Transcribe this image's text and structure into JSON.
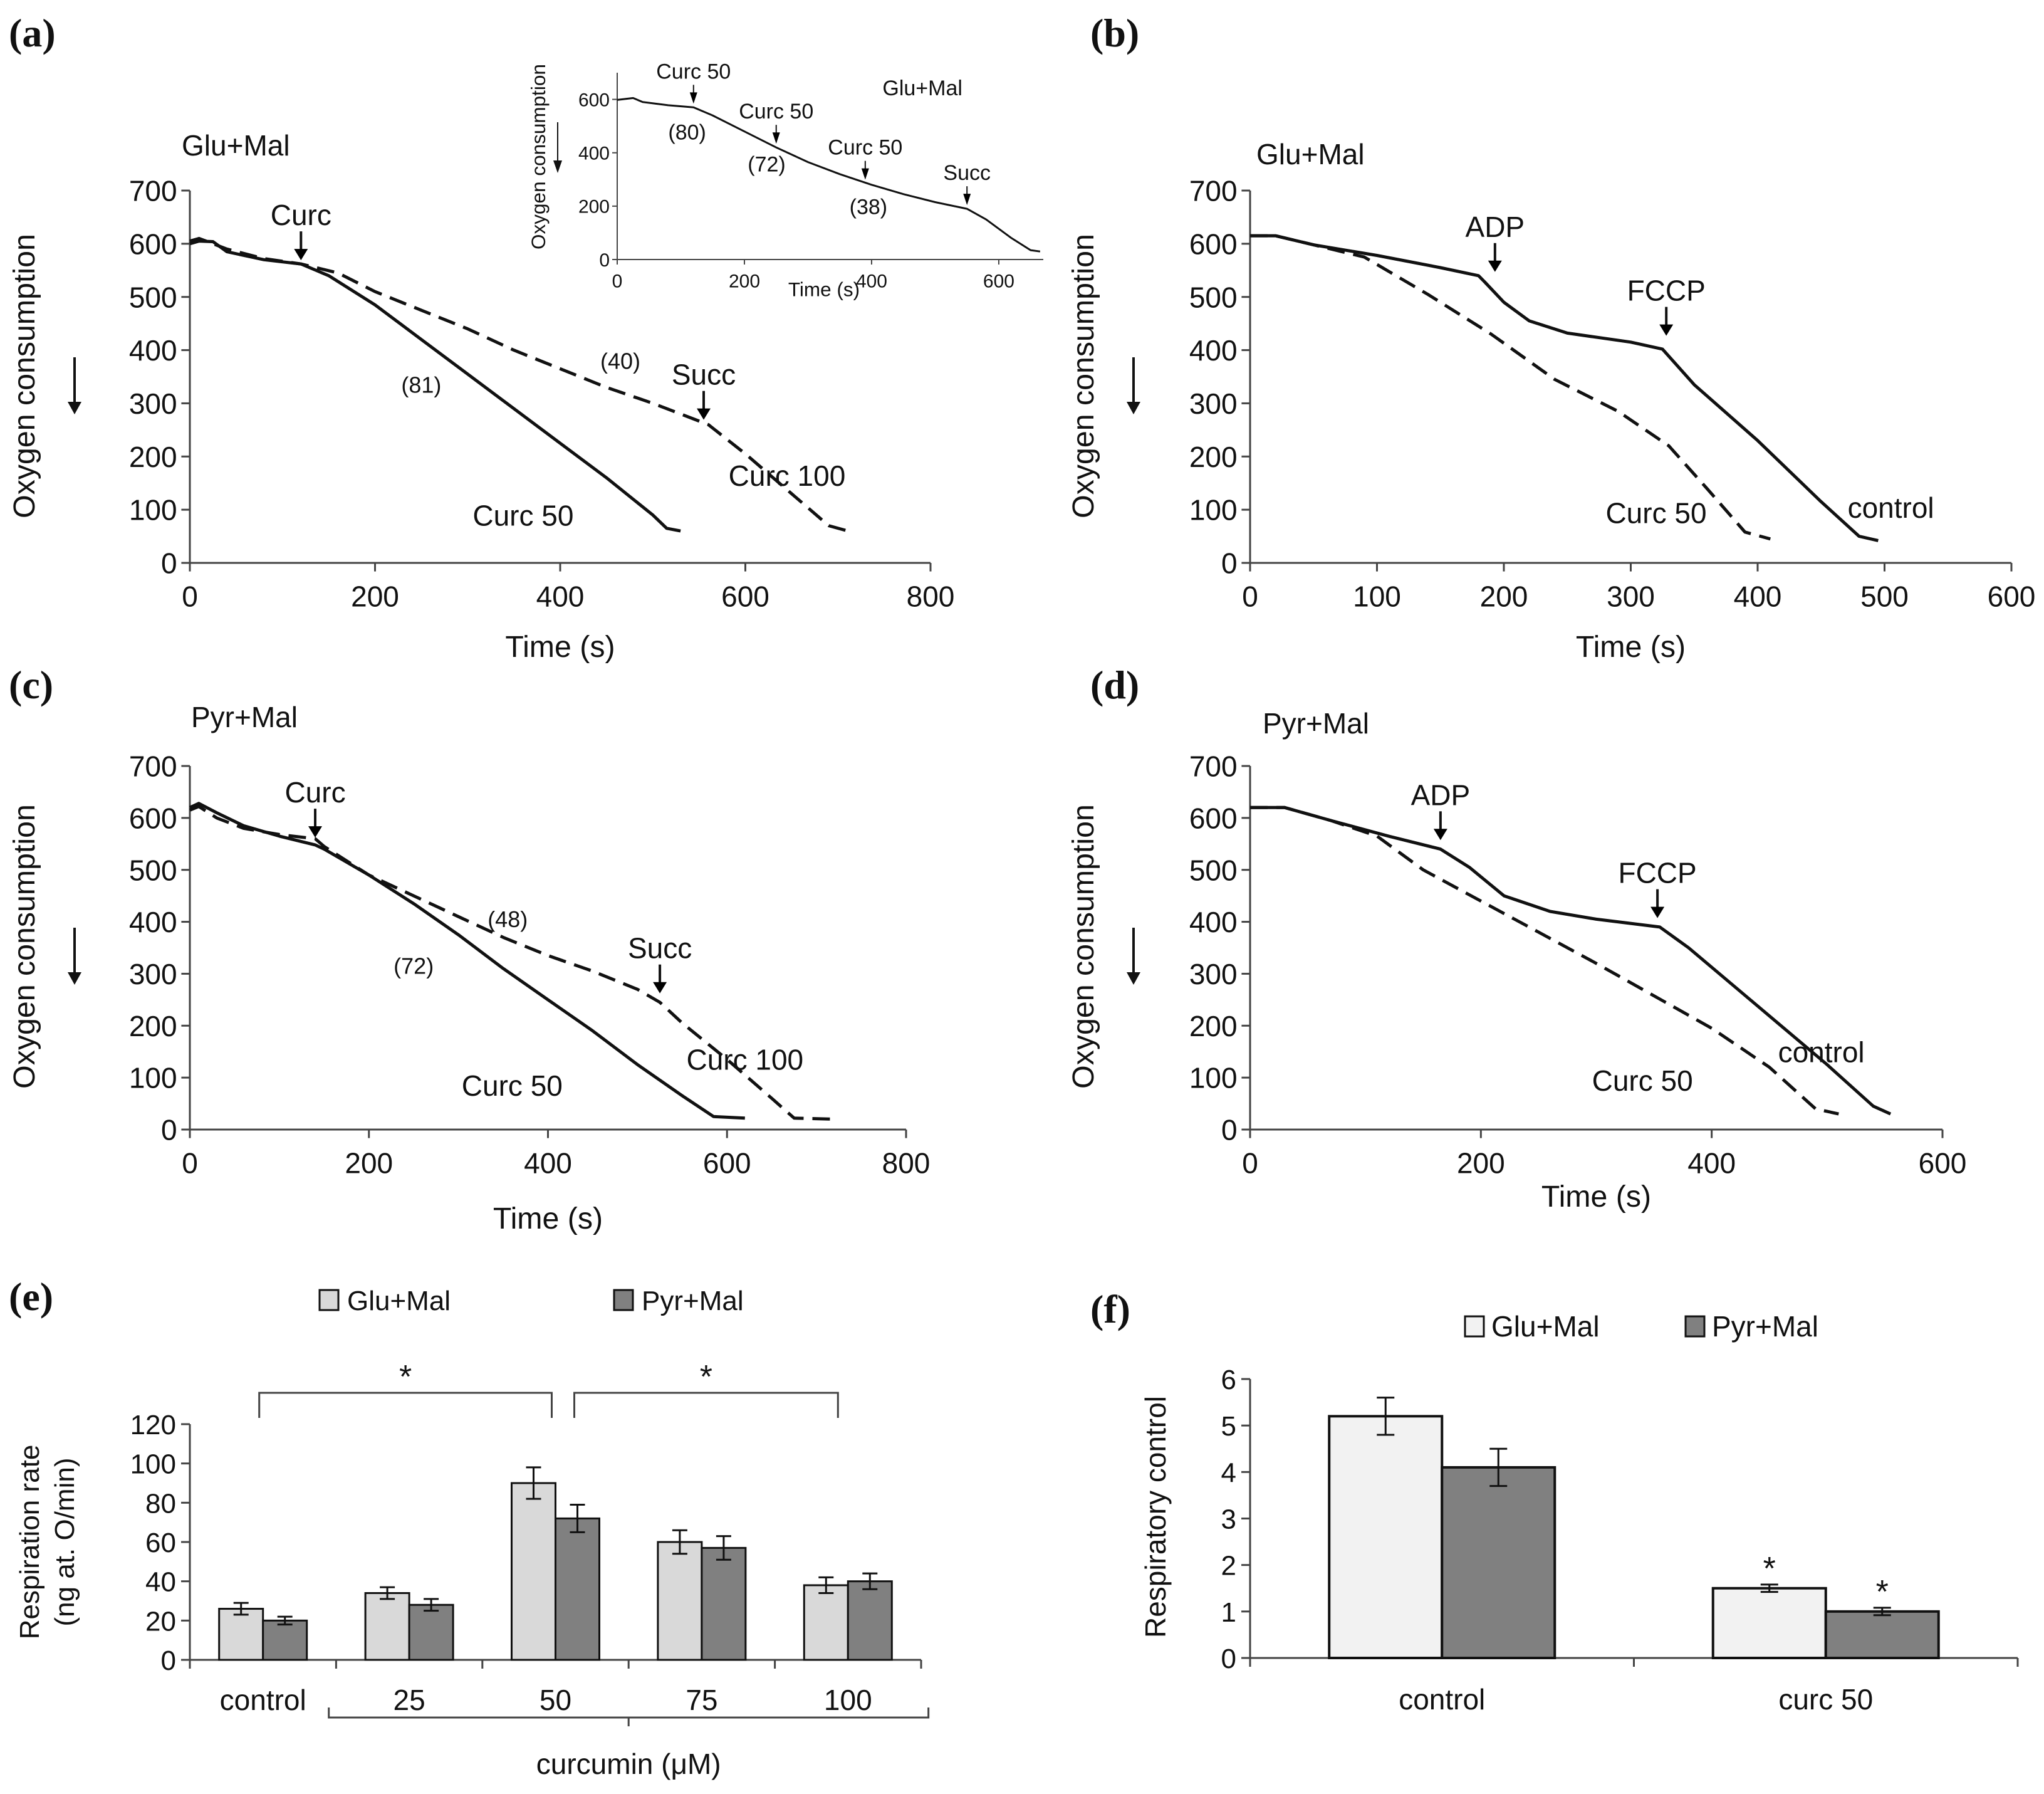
{
  "chart_data": [
    {
      "id": "a",
      "type": "line",
      "panel_label": "(a)",
      "title": "Glu+Mal",
      "xlabel": "Time (s)",
      "ylabel": "Oxygen consumption",
      "xlim": [
        0,
        800
      ],
      "ylim": [
        0,
        700
      ],
      "xticks": [
        0,
        200,
        400,
        600,
        800
      ],
      "yticks": [
        0,
        100,
        200,
        300,
        400,
        500,
        600,
        700
      ],
      "series": [
        {
          "name": "Curc 50",
          "style": "solid",
          "x": [
            0,
            10,
            25,
            40,
            80,
            120,
            150,
            200,
            250,
            300,
            350,
            400,
            450,
            500,
            515,
            530
          ],
          "y": [
            600,
            605,
            604,
            585,
            570,
            562,
            540,
            485,
            420,
            355,
            290,
            225,
            160,
            90,
            65,
            60
          ]
        },
        {
          "name": "Curc 100",
          "style": "dashed",
          "x": [
            0,
            10,
            40,
            80,
            120,
            160,
            200,
            250,
            300,
            350,
            400,
            450,
            500,
            560,
            600,
            650,
            690,
            715
          ],
          "y": [
            605,
            610,
            590,
            572,
            562,
            545,
            510,
            475,
            440,
            400,
            365,
            330,
            300,
            260,
            205,
            130,
            70,
            58
          ]
        }
      ],
      "annotations": [
        {
          "text": "Curc",
          "x": 120,
          "y": 562,
          "arrow": true
        },
        {
          "text": "Succ",
          "x": 555,
          "y": 262,
          "arrow": true
        },
        {
          "text": "(81)",
          "x": 250,
          "y": 320
        },
        {
          "text": "(40)",
          "x": 465,
          "y": 365
        },
        {
          "text": "Curc  50",
          "x": 360,
          "y": 70
        },
        {
          "text": "Curc  100",
          "x": 645,
          "y": 145
        }
      ]
    },
    {
      "id": "a_inset",
      "type": "line",
      "title": "Glu+Mal",
      "xlabel": "Time (s)",
      "ylabel": "Oxygen consumption",
      "xlim": [
        0,
        670
      ],
      "ylim": [
        0,
        700
      ],
      "xticks": [
        0,
        200,
        400,
        600
      ],
      "yticks": [
        0,
        200,
        400,
        600
      ],
      "series": [
        {
          "name": "trace",
          "style": "solid",
          "x": [
            0,
            25,
            40,
            80,
            120,
            150,
            200,
            250,
            300,
            350,
            400,
            450,
            500,
            550,
            580,
            620,
            650,
            665
          ],
          "y": [
            598,
            605,
            590,
            578,
            570,
            540,
            480,
            420,
            365,
            320,
            280,
            245,
            215,
            190,
            150,
            80,
            35,
            30
          ]
        }
      ],
      "annotations": [
        {
          "text": "Curc 50",
          "x": 120,
          "y": 570,
          "arrow": true
        },
        {
          "text": "Curc 50",
          "x": 250,
          "y": 420,
          "arrow": true
        },
        {
          "text": "Curc 50",
          "x": 390,
          "y": 285,
          "arrow": true
        },
        {
          "text": "Succ",
          "x": 550,
          "y": 190,
          "arrow": true
        },
        {
          "text": "(80)",
          "x": 110,
          "y": 450
        },
        {
          "text": "(72)",
          "x": 235,
          "y": 330
        },
        {
          "text": "(38)",
          "x": 395,
          "y": 170
        }
      ]
    },
    {
      "id": "b",
      "type": "line",
      "panel_label": "(b)",
      "title": "Glu+Mal",
      "xlabel": "Time (s)",
      "ylabel": "Oxygen consumption",
      "xlim": [
        0,
        600
      ],
      "ylim": [
        0,
        700
      ],
      "xticks": [
        0,
        100,
        200,
        300,
        400,
        500,
        600
      ],
      "yticks": [
        0,
        100,
        200,
        300,
        400,
        500,
        600,
        700
      ],
      "series": [
        {
          "name": "control",
          "style": "solid",
          "x": [
            0,
            20,
            50,
            100,
            150,
            180,
            185,
            200,
            220,
            250,
            300,
            325,
            350,
            400,
            450,
            480,
            495
          ],
          "y": [
            615,
            615,
            598,
            578,
            555,
            540,
            528,
            490,
            455,
            432,
            415,
            402,
            335,
            230,
            115,
            50,
            42
          ]
        },
        {
          "name": "Curc 50",
          "style": "dashed",
          "x": [
            0,
            20,
            50,
            90,
            140,
            190,
            240,
            290,
            330,
            360,
            390,
            410
          ],
          "y": [
            615,
            615,
            598,
            575,
            505,
            430,
            345,
            285,
            220,
            140,
            58,
            45
          ]
        }
      ],
      "annotations": [
        {
          "text": "ADP",
          "x": 193,
          "y": 540,
          "arrow": true
        },
        {
          "text": "FCCP",
          "x": 328,
          "y": 420,
          "arrow": true
        },
        {
          "text": "Curc 50",
          "x": 320,
          "y": 75
        },
        {
          "text": "control",
          "x": 505,
          "y": 85
        }
      ]
    },
    {
      "id": "c",
      "type": "line",
      "panel_label": "(c)",
      "title": "Pyr+Mal",
      "xlabel": "Time (s)",
      "ylabel": "Oxygen consumption",
      "xlim": [
        0,
        800
      ],
      "ylim": [
        0,
        700
      ],
      "xticks": [
        0,
        200,
        400,
        600,
        800
      ],
      "yticks": [
        0,
        100,
        200,
        300,
        400,
        500,
        600,
        700
      ],
      "series": [
        {
          "name": "Curc 50",
          "style": "solid",
          "x": [
            0,
            10,
            30,
            60,
            100,
            140,
            150,
            200,
            250,
            300,
            350,
            400,
            450,
            500,
            550,
            585,
            620
          ],
          "y": [
            620,
            628,
            610,
            585,
            565,
            548,
            540,
            490,
            435,
            375,
            310,
            250,
            190,
            125,
            65,
            25,
            22
          ]
        },
        {
          "name": "Curc 100",
          "style": "dashed",
          "x": [
            0,
            10,
            30,
            60,
            100,
            140,
            150,
            200,
            250,
            300,
            350,
            400,
            450,
            500,
            525,
            550,
            600,
            650,
            675,
            720
          ],
          "y": [
            615,
            622,
            600,
            580,
            568,
            560,
            545,
            490,
            450,
            410,
            370,
            335,
            305,
            270,
            245,
            205,
            135,
            60,
            22,
            20
          ]
        }
      ],
      "annotations": [
        {
          "text": "Curc",
          "x": 140,
          "y": 555,
          "arrow": true
        },
        {
          "text": "Succ",
          "x": 525,
          "y": 255,
          "arrow": true
        },
        {
          "text": "(72)",
          "x": 250,
          "y": 300
        },
        {
          "text": "(48)",
          "x": 355,
          "y": 390
        },
        {
          "text": "Curc 50",
          "x": 360,
          "y": 65
        },
        {
          "text": "Curc 100",
          "x": 620,
          "y": 115
        }
      ]
    },
    {
      "id": "d",
      "type": "line",
      "panel_label": "(d)",
      "title": "Pyr+Mal",
      "xlabel": "Time (s)",
      "ylabel": "Oxygen consumption",
      "xlim": [
        0,
        600
      ],
      "ylim": [
        0,
        700
      ],
      "xticks": [
        0,
        200,
        400,
        600
      ],
      "yticks": [
        0,
        100,
        200,
        300,
        400,
        500,
        600,
        700
      ],
      "series": [
        {
          "name": "control",
          "style": "solid",
          "x": [
            0,
            30,
            70,
            120,
            165,
            190,
            220,
            260,
            300,
            355,
            380,
            420,
            460,
            500,
            540,
            555
          ],
          "y": [
            620,
            620,
            595,
            565,
            540,
            505,
            450,
            420,
            405,
            390,
            350,
            275,
            200,
            125,
            45,
            30
          ]
        },
        {
          "name": "Curc 50",
          "style": "dashed",
          "x": [
            0,
            30,
            70,
            110,
            150,
            200,
            250,
            300,
            360,
            400,
            450,
            490,
            510
          ],
          "y": [
            620,
            620,
            595,
            565,
            500,
            440,
            380,
            320,
            245,
            195,
            120,
            40,
            30
          ]
        }
      ],
      "annotations": [
        {
          "text": "ADP",
          "x": 165,
          "y": 550,
          "arrow": true
        },
        {
          "text": "FCCP",
          "x": 353,
          "y": 400,
          "arrow": true
        },
        {
          "text": "Curc  50",
          "x": 340,
          "y": 75
        },
        {
          "text": "control",
          "x": 495,
          "y": 130
        }
      ]
    },
    {
      "id": "e",
      "type": "bar",
      "panel_label": "(e)",
      "ylabel_lines": [
        "Respiration rate",
        "(ng at. O/min)"
      ],
      "categories": [
        "control",
        "25",
        "50",
        "75",
        "100"
      ],
      "group_label": "curcumin (μM)",
      "ylim": [
        0,
        120
      ],
      "yticks": [
        0,
        20,
        40,
        60,
        80,
        100,
        120
      ],
      "series": [
        {
          "name": "Glu+Mal",
          "color": "#d9d9d9",
          "values": [
            26,
            34,
            90,
            60,
            38
          ],
          "errors": [
            3,
            3,
            8,
            6,
            4
          ]
        },
        {
          "name": "Pyr+Mal",
          "color": "#808080",
          "values": [
            20,
            28,
            72,
            57,
            40
          ],
          "errors": [
            2,
            3,
            7,
            6,
            4
          ]
        }
      ],
      "significance": [
        {
          "from": 0,
          "to": 2,
          "text": "*"
        },
        {
          "from": 2,
          "to": 4,
          "text": "*"
        }
      ]
    },
    {
      "id": "f",
      "type": "bar",
      "panel_label": "(f)",
      "ylabel": "Respiratory control",
      "categories": [
        "control",
        "curc 50"
      ],
      "ylim": [
        0,
        6
      ],
      "yticks": [
        0,
        1,
        2,
        3,
        4,
        5,
        6
      ],
      "series": [
        {
          "name": "Glu+Mal",
          "color": "#f2f2f2",
          "values": [
            5.2,
            1.5
          ],
          "errors": [
            0.4,
            0.08
          ],
          "stars": [
            "",
            "*"
          ]
        },
        {
          "name": "Pyr+Mal",
          "color": "#808080",
          "values": [
            4.1,
            1.0
          ],
          "errors": [
            0.4,
            0.08
          ],
          "stars": [
            "",
            "*"
          ]
        }
      ]
    }
  ]
}
